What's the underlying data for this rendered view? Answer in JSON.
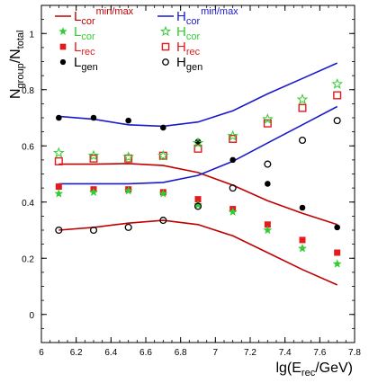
{
  "chart_data": {
    "type": "scatter",
    "xlabel": "lg(E",
    "xlabel_sub": "rec",
    "xlabel_tail": "/GeV)",
    "ylabel": "N",
    "ylabel_sub1": "group",
    "ylabel_mid": "/N",
    "ylabel_sub2": "total",
    "xlim": [
      6.0,
      7.8
    ],
    "ylim": [
      -0.1,
      1.1
    ],
    "xticks": [
      6,
      6.2,
      6.4,
      6.6,
      6.8,
      7,
      7.2,
      7.4,
      7.6,
      7.8
    ],
    "xtick_labels": [
      "6",
      "6.2",
      "6.4",
      "6.6",
      "6.8",
      "7",
      "7.2",
      "7.4",
      "7.6",
      "7.8"
    ],
    "yticks": [
      0,
      0.2,
      0.4,
      0.6,
      0.8,
      1
    ],
    "ytick_labels": [
      "0",
      "0.2",
      "0.4",
      "0.6",
      "0.8",
      "1"
    ],
    "grid": false,
    "legend_placement": "top",
    "x": [
      6.1,
      6.3,
      6.5,
      6.7,
      6.9,
      7.1,
      7.3,
      7.5,
      7.7
    ],
    "lines": [
      {
        "id": "L_cor_max",
        "color": "#c00000",
        "values": [
          0.535,
          0.535,
          0.537,
          0.53,
          0.505,
          0.46,
          0.405,
          0.36,
          0.32
        ]
      },
      {
        "id": "L_cor_min",
        "color": "#c00000",
        "values": [
          0.3,
          0.31,
          0.325,
          0.335,
          0.32,
          0.28,
          0.22,
          0.16,
          0.105
        ]
      },
      {
        "id": "H_cor_max",
        "color": "#1a1acc",
        "values": [
          0.705,
          0.695,
          0.675,
          0.67,
          0.685,
          0.725,
          0.785,
          0.84,
          0.895
        ]
      },
      {
        "id": "H_cor_min",
        "color": "#1a1acc",
        "values": [
          0.465,
          0.465,
          0.465,
          0.47,
          0.495,
          0.545,
          0.61,
          0.675,
          0.74
        ]
      }
    ],
    "series": [
      {
        "id": "L_rec",
        "marker": "filled-square",
        "color": "#e41a1c",
        "values": [
          0.455,
          0.445,
          0.445,
          0.435,
          0.41,
          0.375,
          0.32,
          0.265,
          0.22
        ]
      },
      {
        "id": "L_cor",
        "marker": "filled-star",
        "color": "#33cc33",
        "values": [
          0.43,
          0.435,
          0.44,
          0.43,
          0.39,
          0.365,
          0.3,
          0.235,
          0.18
        ]
      },
      {
        "id": "L_gen",
        "marker": "filled-circle",
        "color": "#000000",
        "values": [
          0.7,
          0.7,
          0.69,
          0.665,
          0.615,
          0.55,
          0.465,
          0.38,
          0.31
        ]
      },
      {
        "id": "H_rec",
        "marker": "open-square",
        "color": "#e41a1c",
        "values": [
          0.545,
          0.555,
          0.555,
          0.565,
          0.59,
          0.625,
          0.68,
          0.735,
          0.78
        ]
      },
      {
        "id": "H_cor",
        "marker": "open-star",
        "color": "#33cc33",
        "values": [
          0.575,
          0.565,
          0.56,
          0.565,
          0.61,
          0.635,
          0.695,
          0.765,
          0.82
        ]
      },
      {
        "id": "H_gen",
        "marker": "open-circle",
        "color": "#000000",
        "values": [
          0.3,
          0.3,
          0.31,
          0.335,
          0.385,
          0.45,
          0.535,
          0.62,
          0.69
        ]
      }
    ],
    "legend": [
      {
        "id": "L_cor_line",
        "main": "L",
        "sub": "cor",
        "sup": "min/max",
        "marker": "line",
        "color": "#c00000"
      },
      {
        "id": "H_cor_line",
        "main": "H",
        "sub": "cor",
        "sup": "min/max",
        "marker": "line",
        "color": "#1a1acc"
      },
      {
        "id": "L_cor",
        "main": "L",
        "sub": "cor",
        "sup": "",
        "marker": "filled-star",
        "color": "#33cc33"
      },
      {
        "id": "H_cor",
        "main": "H",
        "sub": "cor",
        "sup": "",
        "marker": "open-star",
        "color": "#33cc33"
      },
      {
        "id": "L_rec",
        "main": "L",
        "sub": "rec",
        "sup": "",
        "marker": "filled-square",
        "color": "#e41a1c"
      },
      {
        "id": "H_rec",
        "main": "H",
        "sub": "rec",
        "sup": "",
        "marker": "open-square",
        "color": "#e41a1c"
      },
      {
        "id": "L_gen",
        "main": "L",
        "sub": "gen",
        "sup": "",
        "marker": "filled-circle",
        "color": "#000000"
      },
      {
        "id": "H_gen",
        "main": "H",
        "sub": "gen",
        "sup": "",
        "marker": "open-circle",
        "color": "#000000"
      }
    ]
  }
}
